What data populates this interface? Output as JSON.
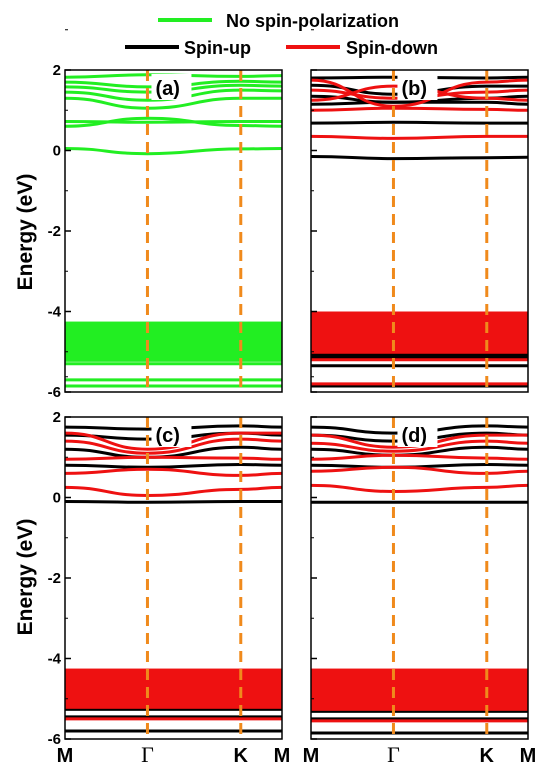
{
  "legend": {
    "no_spin": {
      "label": "No spin-polarization",
      "color": "#22ee22"
    },
    "spin_up": {
      "label": "Spin-up",
      "color": "#000000"
    },
    "spin_down": {
      "label": "Spin-down",
      "color": "#ee1111"
    }
  },
  "chart_data": {
    "type": "line",
    "ylabel": "Energy (eV)",
    "ylim": [
      -6,
      2
    ],
    "yticks": [
      "2",
      "0",
      "-2",
      "-4",
      "-6"
    ],
    "ytick_values": [
      2,
      0,
      -2,
      -4,
      -6
    ],
    "k_path": [
      "M",
      "Γ",
      "K",
      "M"
    ],
    "k_positions": [
      0,
      0.38,
      0.81,
      1
    ],
    "high_symmetry_lines": [
      "Γ",
      "K"
    ],
    "panels": [
      {
        "label": "(a)",
        "series": [
          {
            "name": "No spin-polarization",
            "color": "#22ee22",
            "bands": [
              [
                1.82,
                1.88,
                1.84,
                1.86
              ],
              [
                1.7,
                1.58,
                1.72,
                1.7
              ],
              [
                1.58,
                1.45,
                1.62,
                1.6
              ],
              [
                1.45,
                1.25,
                1.5,
                1.48
              ],
              [
                1.3,
                1.05,
                1.3,
                1.3
              ],
              [
                0.72,
                0.7,
                0.72,
                0.72
              ],
              [
                0.6,
                0.8,
                0.62,
                0.6
              ],
              [
                0.05,
                -0.08,
                0.04,
                0.05
              ]
            ],
            "dense_range": [
              -5.25,
              -4.25
            ],
            "low_bands": [
              [
                -5.3,
                -5.3,
                -5.3,
                -5.3
              ],
              [
                -5.7,
                -5.7,
                -5.7,
                -5.7
              ],
              [
                -5.85,
                -5.85,
                -5.85,
                -5.85
              ]
            ]
          }
        ]
      },
      {
        "label": "(b)",
        "series": [
          {
            "name": "Spin-up",
            "color": "#000000",
            "bands": [
              [
                1.8,
                1.82,
                1.8,
                1.82
              ],
              [
                1.62,
                1.4,
                1.6,
                1.6
              ],
              [
                1.35,
                1.2,
                1.3,
                1.35
              ],
              [
                1.15,
                1.2,
                1.2,
                1.15
              ],
              [
                0.68,
                0.7,
                0.68,
                0.68
              ],
              [
                -0.15,
                -0.2,
                -0.18,
                -0.17
              ]
            ],
            "dense_range": [
              -5.2,
              -4.05
            ],
            "low_bands": [
              [
                -5.35,
                -5.35,
                -5.35,
                -5.35
              ],
              [
                -5.85,
                -5.85,
                -5.85,
                -5.85
              ]
            ]
          },
          {
            "name": "Spin-down",
            "color": "#ee1111",
            "bands": [
              [
                1.75,
                1.1,
                1.7,
                1.75
              ],
              [
                1.5,
                1.3,
                1.45,
                1.5
              ],
              [
                1.25,
                1.6,
                1.3,
                1.25
              ],
              [
                1.0,
                1.05,
                1.02,
                1.0
              ],
              [
                0.35,
                0.3,
                0.35,
                0.35
              ]
            ],
            "dense_range": [
              -5.05,
              -4.0
            ],
            "low_bands": [
              [
                -5.2,
                -5.2,
                -5.2,
                -5.2
              ],
              [
                -5.8,
                -5.8,
                -5.8,
                -5.8
              ]
            ]
          }
        ]
      },
      {
        "label": "(c)",
        "series": [
          {
            "name": "Spin-up",
            "color": "#000000",
            "bands": [
              [
                1.75,
                1.7,
                1.78,
                1.75
              ],
              [
                1.55,
                1.45,
                1.6,
                1.55
              ],
              [
                1.2,
                1.0,
                1.25,
                1.2
              ],
              [
                0.8,
                0.75,
                0.82,
                0.8
              ],
              [
                -0.1,
                -0.12,
                -0.1,
                -0.1
              ]
            ],
            "dense_range": [
              -5.3,
              -4.3
            ],
            "low_bands": [
              [
                -5.45,
                -5.45,
                -5.45,
                -5.45
              ],
              [
                -5.8,
                -5.8,
                -5.8,
                -5.8
              ]
            ]
          },
          {
            "name": "Spin-down",
            "color": "#ee1111",
            "bands": [
              [
                1.6,
                1.2,
                1.6,
                1.6
              ],
              [
                1.4,
                1.1,
                1.45,
                1.4
              ],
              [
                0.95,
                1.0,
                0.98,
                0.95
              ],
              [
                0.6,
                0.7,
                0.55,
                0.6
              ],
              [
                0.25,
                0.05,
                0.2,
                0.25
              ]
            ],
            "dense_range": [
              -5.25,
              -4.25
            ],
            "low_bands": [
              [
                -5.5,
                -5.5,
                -5.5,
                -5.5
              ]
            ]
          }
        ]
      },
      {
        "label": "(d)",
        "series": [
          {
            "name": "Spin-up",
            "color": "#000000",
            "bands": [
              [
                1.75,
                1.6,
                1.78,
                1.75
              ],
              [
                1.55,
                1.4,
                1.6,
                1.55
              ],
              [
                1.2,
                1.05,
                1.25,
                1.2
              ],
              [
                0.8,
                0.75,
                0.82,
                0.8
              ],
              [
                -0.12,
                -0.12,
                -0.12,
                -0.12
              ]
            ],
            "dense_range": [
              -5.35,
              -4.3
            ],
            "low_bands": [
              [
                -5.5,
                -5.5,
                -5.5,
                -5.5
              ],
              [
                -5.85,
                -5.85,
                -5.85,
                -5.85
              ]
            ]
          },
          {
            "name": "Spin-down",
            "color": "#ee1111",
            "bands": [
              [
                1.55,
                1.25,
                1.55,
                1.55
              ],
              [
                1.35,
                1.15,
                1.4,
                1.35
              ],
              [
                0.95,
                1.05,
                0.98,
                0.95
              ],
              [
                0.65,
                0.75,
                0.6,
                0.65
              ],
              [
                0.3,
                0.15,
                0.25,
                0.3
              ]
            ],
            "dense_range": [
              -5.3,
              -4.25
            ],
            "low_bands": [
              [
                -5.55,
                -5.55,
                -5.55,
                -5.55
              ]
            ]
          }
        ]
      }
    ]
  }
}
